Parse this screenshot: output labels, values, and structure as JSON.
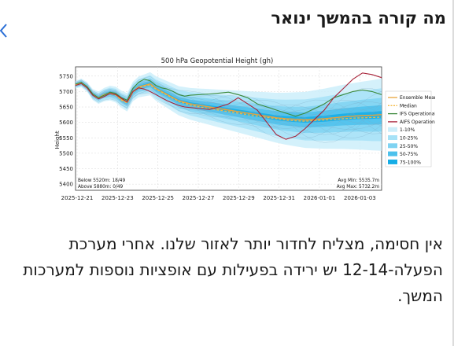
{
  "post": {
    "title": "מה קורה בהמשך ינואר",
    "body": "אין חסימה, מצליח לחדור יותר לאזור שלנו. אחרי מערכת הפעלה-12-14 יש ירידה בפעילות עם אופציות נוספות למערכות המשך."
  },
  "icons": {
    "back": "chevron-left-icon"
  },
  "chart_data": {
    "type": "line",
    "title": "500 hPa Geopotential Height (gh)",
    "ylabel": "Height",
    "xlabel": "",
    "ylim": [
      5380,
      5780
    ],
    "yticks": [
      5400,
      5450,
      5500,
      5550,
      5600,
      5650,
      5700,
      5750
    ],
    "x_tick_labels": [
      "2025-12-21",
      "2025-12-23",
      "2025-12-25",
      "2025-12-27",
      "2025-12-29",
      "2025-12-31",
      "2026-01-01",
      "2026-01-03"
    ],
    "grid": true,
    "legend_position": "right",
    "legend": [
      {
        "label": "Ensemble Mean",
        "color": "#e8a33c",
        "style": "solid"
      },
      {
        "label": "Median",
        "color": "#f5b942",
        "style": "dashed"
      },
      {
        "label": "IFS Operational",
        "color": "#3c8a3c",
        "style": "solid"
      },
      {
        "label": "AIFS Operational",
        "color": "#a8243a",
        "style": "solid"
      },
      {
        "label": "1-10%",
        "color": "#cdeefa",
        "style": "box"
      },
      {
        "label": "10-25%",
        "color": "#a6e2f7",
        "style": "box"
      },
      {
        "label": "25-50%",
        "color": "#7fd3f2",
        "style": "box"
      },
      {
        "label": "50-75%",
        "color": "#4cc1ec",
        "style": "box"
      },
      {
        "label": "75-100%",
        "color": "#15ade6",
        "style": "box"
      }
    ],
    "stats_left": [
      "Below 5520m: 18/49",
      "Above 5880m: 0/49"
    ],
    "stats_right": [
      "Avg Min: 5535.7m",
      "Avg Max: 5732.2m"
    ],
    "x_days": [
      0,
      0.3,
      0.6,
      0.9,
      1.2,
      1.5,
      1.8,
      2.1,
      2.4,
      2.7,
      3.0,
      3.3,
      3.6,
      3.9,
      4.2,
      4.5,
      4.8,
      5.1,
      5.4,
      5.7,
      6.0,
      6.5,
      7,
      7.5,
      8,
      8.5,
      9,
      9.5,
      10,
      10.5,
      11,
      11.5,
      12,
      12.5,
      13,
      13.5,
      14,
      14.5,
      15,
      15.5,
      16
    ],
    "series": [
      {
        "name": "Ensemble Mean",
        "values": [
          5722,
          5728,
          5715,
          5690,
          5680,
          5690,
          5695,
          5690,
          5675,
          5665,
          5700,
          5715,
          5720,
          5725,
          5710,
          5700,
          5690,
          5680,
          5670,
          5665,
          5660,
          5655,
          5650,
          5645,
          5640,
          5635,
          5630,
          5625,
          5620,
          5615,
          5612,
          5610,
          5608,
          5610,
          5612,
          5615,
          5618,
          5620,
          5622,
          5623,
          5625
        ]
      },
      {
        "name": "Median",
        "values": [
          5722,
          5728,
          5713,
          5688,
          5678,
          5688,
          5693,
          5688,
          5672,
          5663,
          5698,
          5712,
          5718,
          5722,
          5708,
          5698,
          5688,
          5678,
          5668,
          5662,
          5656,
          5650,
          5645,
          5640,
          5635,
          5630,
          5625,
          5620,
          5616,
          5612,
          5608,
          5605,
          5604,
          5606,
          5608,
          5610,
          5612,
          5614,
          5615,
          5616,
          5617
        ]
      },
      {
        "name": "IFS Operational",
        "values": [
          5724,
          5730,
          5716,
          5692,
          5680,
          5688,
          5698,
          5694,
          5680,
          5672,
          5710,
          5730,
          5740,
          5735,
          5720,
          5712,
          5708,
          5700,
          5690,
          5685,
          5688,
          5690,
          5692,
          5695,
          5698,
          5690,
          5680,
          5660,
          5650,
          5640,
          5630,
          5620,
          5630,
          5645,
          5660,
          5680,
          5690,
          5700,
          5705,
          5700,
          5690
        ]
      },
      {
        "name": "AIFS Operational",
        "values": [
          5720,
          5726,
          5712,
          5688,
          5676,
          5684,
          5694,
          5690,
          5678,
          5666,
          5700,
          5712,
          5708,
          5700,
          5690,
          5680,
          5670,
          5662,
          5655,
          5650,
          5648,
          5645,
          5642,
          5650,
          5660,
          5680,
          5660,
          5640,
          5600,
          5560,
          5545,
          5555,
          5580,
          5610,
          5640,
          5680,
          5710,
          5740,
          5760,
          5755,
          5745
        ]
      }
    ]
  }
}
